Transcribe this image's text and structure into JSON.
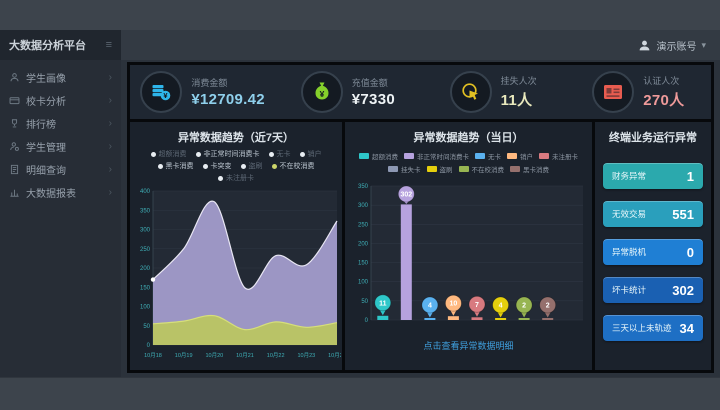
{
  "sidebar": {
    "brand": "大数据分析平台",
    "items": [
      {
        "id": "student-profile",
        "icon": "user-icon",
        "label": "学生画像"
      },
      {
        "id": "card-analysis",
        "icon": "card-icon",
        "label": "校卡分析"
      },
      {
        "id": "ranking",
        "icon": "trophy-icon",
        "label": "排行榜"
      },
      {
        "id": "student-mgmt",
        "icon": "user-gear-icon",
        "label": "学生管理"
      },
      {
        "id": "detail-query",
        "icon": "document-icon",
        "label": "明细查询"
      },
      {
        "id": "bigdata-report",
        "icon": "report-icon",
        "label": "大数据报表"
      }
    ]
  },
  "header": {
    "user_name": "演示账号"
  },
  "kpis": [
    {
      "label": "消费金额",
      "value": "¥12709.42",
      "value_color": "#8fd0ec",
      "icon": "coins-icon",
      "icon_color": "#2eb5ea"
    },
    {
      "label": "充值金额",
      "value": "¥7330",
      "value_color": "#eef3f5",
      "icon": "money-bag-icon",
      "icon_color": "#85d02b"
    },
    {
      "label": "挂失人次",
      "value": "11人",
      "value_color": "#e9e9bd",
      "icon": "hand-click-icon",
      "icon_color": "#e2c022"
    },
    {
      "label": "认证人次",
      "value": "270人",
      "value_color": "#ef9a9a",
      "icon": "id-card-icon",
      "icon_color": "#e85c50"
    }
  ],
  "left_chart": {
    "title": "异常数据趋势（近7天）",
    "legend_rows": [
      [
        {
          "label": "超额消费",
          "active": false
        },
        {
          "label": "非正常时间消费卡",
          "active": true
        },
        {
          "label": "无卡",
          "active": false
        },
        {
          "label": "销户",
          "active": false
        }
      ],
      [
        {
          "label": "黑卡消费",
          "active": true
        },
        {
          "label": "卡突变",
          "active": true
        },
        {
          "label": "盗刷",
          "active": false
        },
        {
          "label": "不在校消费",
          "active": true,
          "dot": "#cbd46a"
        }
      ],
      [
        {
          "label": "未注册卡",
          "active": false
        }
      ]
    ]
  },
  "mid_chart": {
    "title": "异常数据趋势（当日）",
    "legend_rows": [
      [
        {
          "label": "超额消费",
          "color": "#2ec7c9"
        },
        {
          "label": "非正常时间消费卡",
          "color": "#b6a2de"
        },
        {
          "label": "无卡",
          "color": "#5ab1ef"
        },
        {
          "label": "销户",
          "color": "#ffb980"
        },
        {
          "label": "未注册卡",
          "color": "#d87a80"
        }
      ],
      [
        {
          "label": "挂失卡",
          "color": "#8d98b3"
        },
        {
          "label": "盗刷",
          "color": "#e5cf0d"
        },
        {
          "label": "不在校消费",
          "color": "#97b552"
        },
        {
          "label": "黑卡消费",
          "color": "#95706d"
        }
      ]
    ],
    "link": "点击查看异常数据明细"
  },
  "terminal_panel": {
    "title": "终端业务运行异常",
    "stats": [
      {
        "label": "财务异常",
        "value": "1",
        "bg": "#2ba9ad"
      },
      {
        "label": "无效交易",
        "value": "551",
        "bg": "#2a9fbc"
      },
      {
        "label": "异常脱机",
        "value": "0",
        "bg": "#1f7fd4"
      },
      {
        "label": "坏卡统计",
        "value": "302",
        "bg": "#1a60b2"
      },
      {
        "label": "三天以上未轨迹",
        "value": "34",
        "bg": "#1e6fc4"
      }
    ]
  },
  "chart_data": [
    {
      "id": "trend-7days",
      "type": "area",
      "title": "异常数据趋势（近7天）",
      "x": [
        "10月18",
        "10月19",
        "10月20",
        "10月21",
        "10月22",
        "10月23",
        "10月24"
      ],
      "series": [
        {
          "name": "非正常时间消费卡",
          "fill": "#a79fd0",
          "line": "#e9e7f4",
          "values": [
            170,
            250,
            372,
            148,
            232,
            208,
            322
          ]
        },
        {
          "name": "不在校消费",
          "fill": "#bcc75e",
          "line": "#d6df7a",
          "values": [
            55,
            62,
            76,
            40,
            60,
            46,
            58
          ]
        }
      ],
      "ylim": [
        0,
        400
      ],
      "ytick_step": 50,
      "grid": true,
      "legend_position": "top"
    },
    {
      "id": "trend-today",
      "type": "bar",
      "title": "异常数据趋势（当日）",
      "categories": [
        "超额消费",
        "非正常时间消费卡",
        "无卡",
        "销户",
        "未注册卡",
        "盗刷",
        "不在校消费",
        "黑卡消费",
        "挂失卡"
      ],
      "values": [
        11,
        302,
        4,
        10,
        7,
        4,
        2,
        2,
        0
      ],
      "colors": [
        "#2ec7c9",
        "#b6a2de",
        "#5ab1ef",
        "#ffb980",
        "#d87a80",
        "#e5cf0d",
        "#97b552",
        "#95706d",
        "#8d98b3"
      ],
      "ylim": [
        0,
        350
      ],
      "ytick_step": 50,
      "grid": true
    }
  ]
}
